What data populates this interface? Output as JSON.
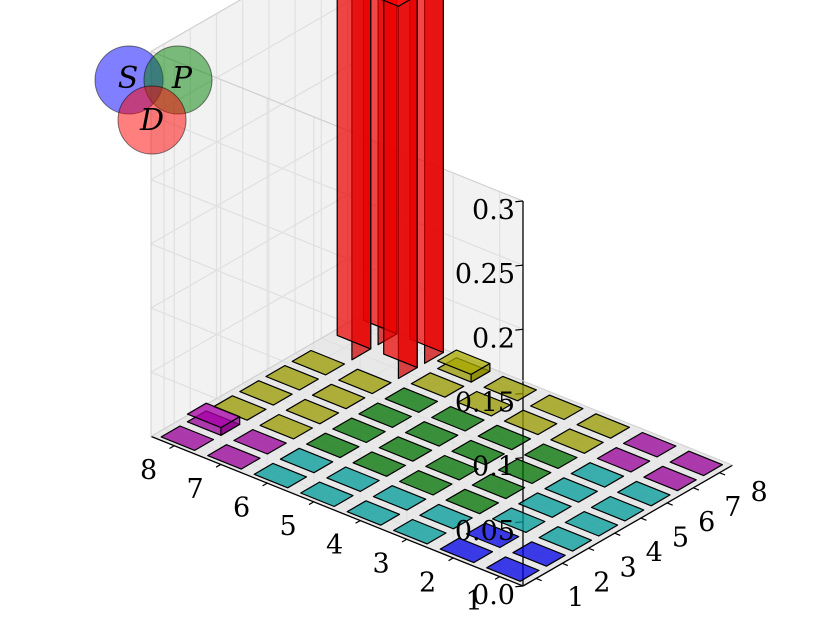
{
  "chart_data": {
    "type": "bar3d",
    "title": "",
    "xlabel": "",
    "ylabel": "",
    "zlabel": "",
    "x_ticks": [
      "1",
      "2",
      "3",
      "4",
      "5",
      "6",
      "7",
      "8"
    ],
    "y_ticks": [
      "1",
      "2",
      "3",
      "4",
      "5",
      "6",
      "7",
      "8"
    ],
    "z_ticks": [
      "0.0",
      "0.05",
      "0.1",
      "0.15",
      "0.2",
      "0.25",
      "0.3"
    ],
    "zlim": [
      0,
      0.3
    ],
    "grid": true,
    "region_colors": {
      "S": "#0000ff",
      "P": "#008000",
      "D": "#ff0000",
      "SP": "#00aaaa",
      "SD": "#aa00aa",
      "PD": "#aaaa00"
    },
    "x_categories": [
      1,
      2,
      3,
      4,
      5,
      6,
      7,
      8
    ],
    "y_categories": [
      1,
      2,
      3,
      4,
      5,
      6,
      7,
      8
    ],
    "heights": [
      [
        0.0,
        0.0,
        0.0,
        0.0,
        0.0,
        0.0,
        0.0,
        0.0
      ],
      [
        0.0,
        0.0,
        0.0,
        0.0,
        0.0,
        0.0,
        0.0,
        0.0
      ],
      [
        0.0,
        0.0,
        0.0,
        0.0,
        0.0,
        0.0,
        0.0,
        0.0
      ],
      [
        0.0,
        0.0,
        0.0,
        0.0,
        0.0,
        0.0,
        0.0,
        0.0
      ],
      [
        0.0,
        0.0,
        0.0,
        0.0,
        0.0,
        0.0,
        0.0,
        0.0
      ],
      [
        0.0,
        0.0,
        0.0,
        0.0,
        0.0,
        0.0,
        0.0,
        0.003
      ],
      [
        0.0,
        0.0,
        0.0,
        0.0,
        0.0,
        0.0,
        0.29,
        0.29
      ],
      [
        0.0,
        0.003,
        0.0,
        0.0,
        0.0,
        0.0,
        0.29,
        0.29
      ]
    ],
    "colors": [
      [
        "S",
        "S",
        "SP",
        "SP",
        "SP",
        "SP",
        "SD",
        "SD"
      ],
      [
        "S",
        "S",
        "SP",
        "SP",
        "SP",
        "SP",
        "SD",
        "SD"
      ],
      [
        "SP",
        "SP",
        "P",
        "P",
        "P",
        "P",
        "PD",
        "PD"
      ],
      [
        "SP",
        "SP",
        "P",
        "P",
        "P",
        "P",
        "PD",
        "PD"
      ],
      [
        "SP",
        "SP",
        "P",
        "P",
        "P",
        "P",
        "PD",
        "PD"
      ],
      [
        "SP",
        "SP",
        "P",
        "P",
        "P",
        "P",
        "PD",
        "PD"
      ],
      [
        "SD",
        "SD",
        "PD",
        "PD",
        "PD",
        "PD",
        "D",
        "D"
      ],
      [
        "SD",
        "SD",
        "PD",
        "PD",
        "PD",
        "PD",
        "D",
        "D"
      ]
    ],
    "venn_legend": [
      {
        "label": "S",
        "color": "#0000ff"
      },
      {
        "label": "P",
        "color": "#008000"
      },
      {
        "label": "D",
        "color": "#ff0000"
      }
    ]
  }
}
